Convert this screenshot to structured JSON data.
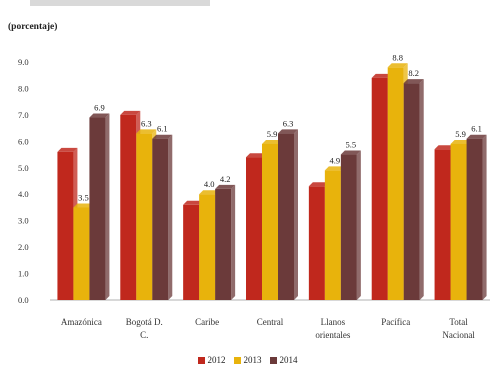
{
  "chart_data": {
    "type": "bar",
    "unit_label": "(porcentaje)",
    "categories": [
      [
        "Amazónica"
      ],
      [
        "Bogotá D.",
        "C."
      ],
      [
        "Caribe"
      ],
      [
        "Central"
      ],
      [
        "Llanos",
        "orientales"
      ],
      [
        "Pacífica"
      ],
      [
        "Total",
        "Nacional"
      ]
    ],
    "series": [
      {
        "name": "2012",
        "color": "#c0281d",
        "values": [
          5.6,
          7.0,
          3.6,
          5.4,
          4.3,
          8.4,
          5.7
        ],
        "labels": [
          "",
          "",
          "",
          "",
          "",
          "",
          ""
        ]
      },
      {
        "name": "2013",
        "color": "#e8b30c",
        "values": [
          3.5,
          6.3,
          4.0,
          5.9,
          4.9,
          8.8,
          5.9
        ],
        "labels": [
          "3.5",
          "6.3",
          "4.0",
          "5.9",
          "4.9",
          "8.8",
          "5.9"
        ]
      },
      {
        "name": "2014",
        "color": "#6b3a3a",
        "values": [
          6.9,
          6.1,
          4.2,
          6.3,
          5.5,
          8.2,
          6.1
        ],
        "labels": [
          "6.9",
          "6.1",
          "4.2",
          "6.3",
          "5.5",
          "8.2",
          "6.1"
        ]
      }
    ],
    "ylim": [
      0,
      9
    ],
    "yticks": [
      "0.0",
      "1.0",
      "2.0",
      "3.0",
      "4.0",
      "5.0",
      "6.0",
      "7.0",
      "8.0",
      "9.0"
    ],
    "grid": false,
    "legend_position": "bottom-center"
  }
}
